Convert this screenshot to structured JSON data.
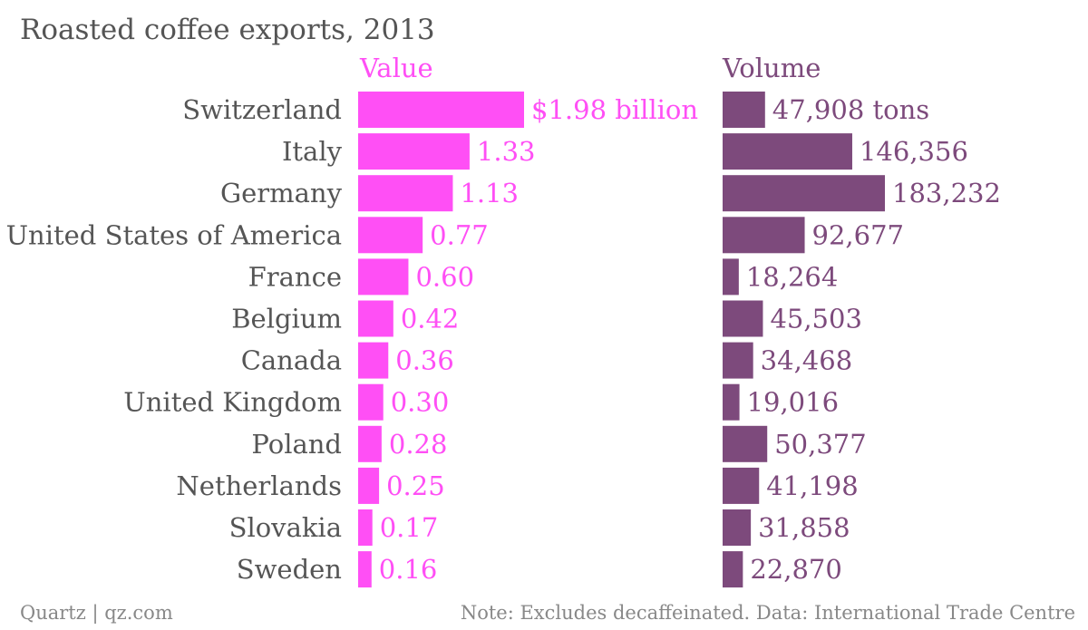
{
  "chart_data": {
    "type": "bar",
    "title": "Roasted coffee exports, 2013",
    "categories": [
      "Switzerland",
      "Italy",
      "Germany",
      "United States of America",
      "France",
      "Belgium",
      "Canada",
      "United Kingdom",
      "Poland",
      "Netherlands",
      "Slovakia",
      "Sweden"
    ],
    "series": [
      {
        "name": "Value",
        "values": [
          1.98,
          1.33,
          1.13,
          0.77,
          0.6,
          0.42,
          0.36,
          0.3,
          0.28,
          0.25,
          0.17,
          0.16
        ],
        "labels": [
          "$1.98 billion",
          "1.33",
          "1.13",
          "0.77",
          "0.60",
          "0.42",
          "0.36",
          "0.30",
          "0.28",
          "0.25",
          "0.17",
          "0.16"
        ],
        "color": "#ff4ff5",
        "xlim": [
          0,
          2.0
        ]
      },
      {
        "name": "Volume",
        "values": [
          47908,
          146356,
          183232,
          92677,
          18264,
          45503,
          34468,
          19016,
          50377,
          41198,
          31858,
          22870
        ],
        "labels": [
          "47,908 tons",
          "146,356",
          "183,232",
          "92,677",
          "18,264",
          "45,503",
          "34,468",
          "19,016",
          "50,377",
          "41,198",
          "31,858",
          "22,870"
        ],
        "color": "#7d4a7c",
        "xlim": [
          0,
          200000
        ]
      }
    ],
    "grid": false
  },
  "footer": {
    "source": "Quartz | qz.com",
    "note": "Note: Excludes decaffeinated. Data: International Trade Centre"
  },
  "colors": {
    "text": "#555555",
    "footer_text": "#888888",
    "value_accent": "#ff4ff5",
    "volume_accent": "#7d4a7c"
  }
}
